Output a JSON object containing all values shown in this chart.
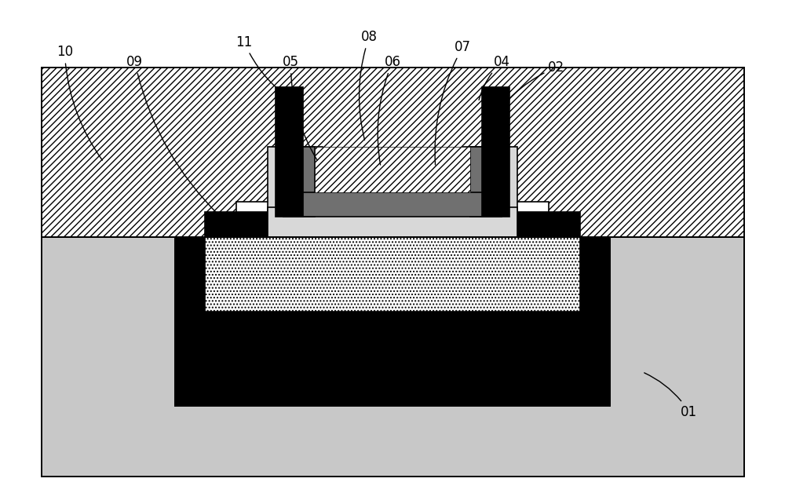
{
  "figure_width": 10.0,
  "figure_height": 6.42,
  "bg_color": "#ffffff",
  "colors": {
    "substrate": "#c8c8c8",
    "black": "#000000",
    "white": "#ffffff",
    "light_gray": "#d8d8d8",
    "dark_gray": "#707070",
    "medium_gray": "#a0a0a0"
  },
  "annotations": [
    [
      "10",
      8.0,
      90.0,
      13.0,
      68.0
    ],
    [
      "09",
      17.0,
      88.0,
      28.0,
      57.0
    ],
    [
      "11",
      31.0,
      92.0,
      37.5,
      80.0
    ],
    [
      "05",
      37.0,
      88.0,
      40.5,
      68.0
    ],
    [
      "08",
      47.0,
      93.0,
      46.5,
      72.0
    ],
    [
      "06",
      50.0,
      88.0,
      48.5,
      67.0
    ],
    [
      "07",
      59.0,
      91.0,
      55.5,
      67.0
    ],
    [
      "04",
      64.0,
      88.0,
      61.0,
      80.0
    ],
    [
      "02",
      71.0,
      87.0,
      62.5,
      76.0
    ],
    [
      "01",
      88.0,
      18.0,
      82.0,
      26.0
    ]
  ],
  "label_fontsize": 12
}
